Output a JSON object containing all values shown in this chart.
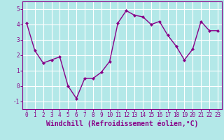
{
  "x": [
    0,
    1,
    2,
    3,
    4,
    5,
    6,
    7,
    8,
    9,
    10,
    11,
    12,
    13,
    14,
    15,
    16,
    17,
    18,
    19,
    20,
    21,
    22,
    23
  ],
  "y": [
    4.1,
    2.3,
    1.5,
    1.7,
    1.9,
    0.0,
    -0.8,
    0.5,
    0.5,
    0.9,
    1.6,
    4.1,
    4.9,
    4.6,
    4.5,
    4.0,
    4.2,
    3.3,
    2.6,
    1.7,
    2.4,
    4.2,
    3.6,
    3.6
  ],
  "line_color": "#880088",
  "marker": "D",
  "marker_size": 2.0,
  "bg_color": "#b3e8e8",
  "grid_color": "#ffffff",
  "xlabel": "Windchill (Refroidissement éolien,°C)",
  "xlabel_color": "#880088",
  "ylim": [
    -1.5,
    5.5
  ],
  "xlim": [
    -0.5,
    23.5
  ],
  "yticks": [
    -1,
    0,
    1,
    2,
    3,
    4,
    5
  ],
  "xticks": [
    0,
    1,
    2,
    3,
    4,
    5,
    6,
    7,
    8,
    9,
    10,
    11,
    12,
    13,
    14,
    15,
    16,
    17,
    18,
    19,
    20,
    21,
    22,
    23
  ],
  "tick_fontsize": 5.5,
  "xlabel_fontsize": 7.0,
  "line_width": 1.0
}
